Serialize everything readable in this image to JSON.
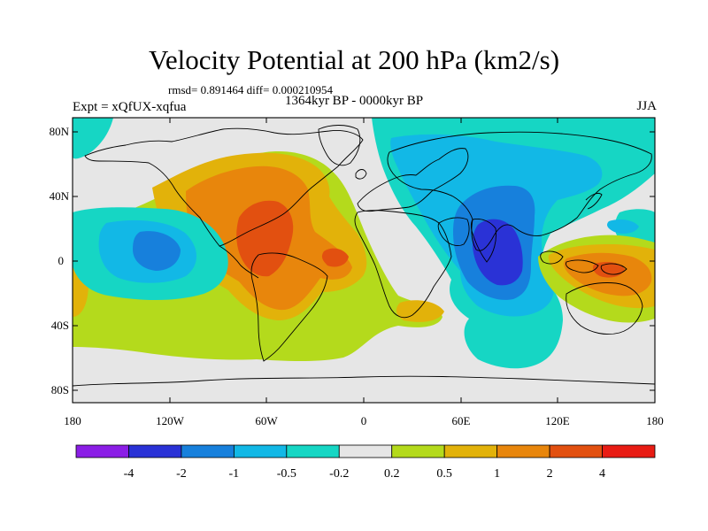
{
  "title": "Velocity Potential at 200 hPa (km2/s)",
  "stats": "rmsd= 0.891464 diff= 0.000210954",
  "period": "1364kyr BP - 0000kyr BP",
  "experiment": "Expt = xQfUX-xqfua",
  "season": "JJA",
  "lat_ticks": [
    "80N",
    "40N",
    "0",
    "40S",
    "80S"
  ],
  "lon_ticks": [
    "180",
    "120W",
    "60W",
    "0",
    "60E",
    "120E",
    "180"
  ],
  "colorbar": {
    "labels": [
      "-4",
      "-2",
      "-1",
      "-0.5",
      "-0.2",
      "0.2",
      "0.5",
      "1",
      "2",
      "4"
    ],
    "colors": [
      "#8b1ee6",
      "#2a32d6",
      "#1780dc",
      "#12b8e6",
      "#16d6c4",
      "#e6e6e6",
      "#b4da1c",
      "#e2b20a",
      "#e8860c",
      "#e25010",
      "#e81c14"
    ]
  }
}
